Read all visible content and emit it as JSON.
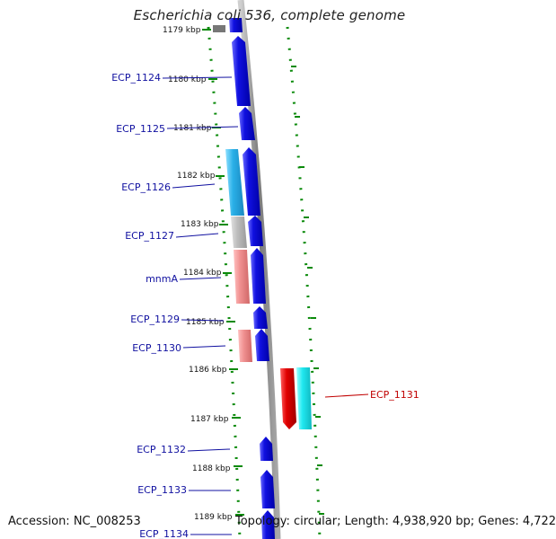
{
  "title": "Escherichia coli 536, complete genome",
  "footer": {
    "accession": "Accession: NC_008253",
    "topology": "Topology: circular; Length: 4,938,920 bp; Genes: 4,722"
  },
  "colors": {
    "forward_gene": "#1010e0",
    "cyan_gene": "#2ab0e8",
    "gray_gene": "#b8b8b8",
    "salmon_gene": "#f09090",
    "red_gene": "#e00000",
    "aqua_gene": "#20e8f0",
    "backbone": "#888888",
    "tick": "#0a8a0a",
    "label_blue": "#1010a0",
    "label_red": "#c00000"
  },
  "ticks": [
    "1179 kbp",
    "1180 kbp",
    "1181 kbp",
    "1182 kbp",
    "1183 kbp",
    "1184 kbp",
    "1185 kbp",
    "1186 kbp",
    "1187 kbp",
    "1188 kbp",
    "1189 kbp"
  ],
  "gene_labels": [
    {
      "text": "ECP_1124",
      "color": "blue"
    },
    {
      "text": "ECP_1125",
      "color": "blue"
    },
    {
      "text": "ECP_1126",
      "color": "blue"
    },
    {
      "text": "ECP_1127",
      "color": "blue"
    },
    {
      "text": "mnmA",
      "color": "blue"
    },
    {
      "text": "ECP_1129",
      "color": "blue"
    },
    {
      "text": "ECP_1130",
      "color": "blue"
    },
    {
      "text": "ECP_1131",
      "color": "red"
    },
    {
      "text": "ECP_1132",
      "color": "blue"
    },
    {
      "text": "ECP_1133",
      "color": "blue"
    },
    {
      "text": "ECP_1134",
      "color": "blue"
    }
  ]
}
